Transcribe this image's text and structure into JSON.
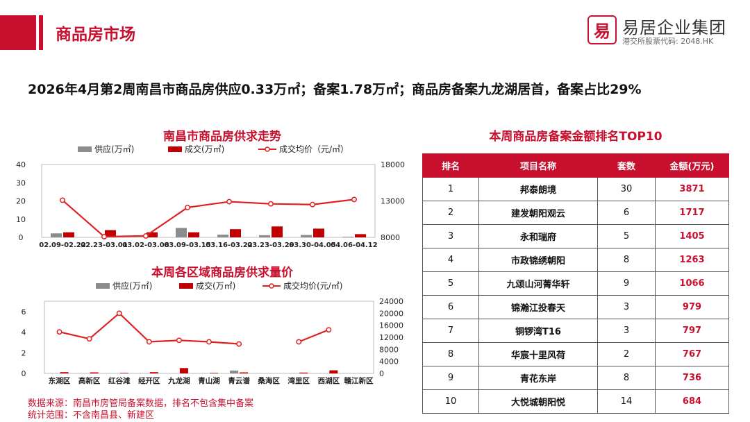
{
  "header": {
    "section_title": "商品房市场",
    "brand_seal": "易",
    "brand_name": "易居企业集团",
    "brand_sub": "港交所股票代码: 2048.HK"
  },
  "headline": "2026年4月第2周南昌市商品房供应0.33万㎡；备案1.78万㎡；商品房备案九龙湖居首，备案占比29%",
  "colors": {
    "supply": "#8c8c8c",
    "deal": "#c00000",
    "price": "#e02020",
    "accent": "#c8102e"
  },
  "chart_data": [
    {
      "type": "bar",
      "title": "南昌市商品房供求走势",
      "categories": [
        "02.09-02.22",
        "02.23-03.01",
        "03.02-03.08",
        "03.09-03.15",
        "03.16-03.22",
        "03.23-03.29",
        "03.30-04.05",
        "04.06-04.12"
      ],
      "series": [
        {
          "name": "供应(万㎡)",
          "values": [
            2.2,
            0,
            0,
            5.2,
            1.5,
            1.2,
            1.3,
            0.33
          ]
        },
        {
          "name": "成交(万㎡)",
          "values": [
            2.8,
            4.0,
            2.8,
            2.8,
            4.5,
            6.0,
            4.8,
            1.78
          ]
        },
        {
          "name": "成交均价（元/㎡）",
          "axis": "right",
          "values": [
            13100,
            8100,
            8200,
            12100,
            12900,
            12600,
            12500,
            13200
          ]
        }
      ],
      "ylim": [
        0,
        40
      ],
      "y_ticks": [
        "40",
        "30",
        "20",
        "10",
        "0"
      ],
      "y2lim": [
        8000,
        18000
      ],
      "y2_ticks": [
        "18000",
        "13000",
        "8000"
      ]
    },
    {
      "type": "bar",
      "title": "本周各区域商品房供求量价",
      "categories": [
        "东湖区",
        "高新区",
        "红谷滩",
        "经开区",
        "九龙湖",
        "青山湖",
        "青云谱",
        "桑海区",
        "湾里区",
        "西湖区",
        "赣江新区"
      ],
      "series": [
        {
          "name": "供应(万㎡)",
          "values": [
            0,
            0,
            0,
            0,
            0,
            0,
            0.28,
            0,
            0,
            0,
            0
          ]
        },
        {
          "name": "成交(万㎡)",
          "values": [
            0.12,
            0.1,
            0.05,
            0.12,
            0.52,
            0.05,
            0.1,
            0,
            0.08,
            0.3,
            0
          ]
        },
        {
          "name": "成交均价(元/㎡)",
          "axis": "right",
          "values": [
            13800,
            11500,
            20000,
            10500,
            11000,
            10500,
            9800,
            null,
            10500,
            14500,
            null
          ]
        }
      ],
      "ylim": [
        0,
        7
      ],
      "y_ticks": [
        "6",
        "4",
        "2",
        "0"
      ],
      "y2lim": [
        0,
        24000
      ],
      "y2_ticks": [
        "24000",
        "20000",
        "16000",
        "12000",
        "8000",
        "4000",
        "0"
      ]
    }
  ],
  "ranking": {
    "title": "本周商品房备案金额排名TOP10",
    "columns": [
      "排名",
      "项目名称",
      "套数",
      "金额(万元)"
    ],
    "rows": [
      [
        "1",
        "邦泰朗境",
        "30",
        "3871"
      ],
      [
        "2",
        "建发朝阳观云",
        "6",
        "1717"
      ],
      [
        "3",
        "永和瑞府",
        "5",
        "1405"
      ],
      [
        "4",
        "市政锦绣朝阳",
        "8",
        "1263"
      ],
      [
        "5",
        "九颂山河菁华轩",
        "9",
        "1066"
      ],
      [
        "6",
        "锦瀚江投春天",
        "3",
        "979"
      ],
      [
        "7",
        "铜锣湾T16",
        "3",
        "797"
      ],
      [
        "8",
        "华宸十里风荷",
        "2",
        "767"
      ],
      [
        "9",
        "青花东岸",
        "8",
        "736"
      ],
      [
        "10",
        "大悦城朝阳悦",
        "14",
        "684"
      ]
    ]
  },
  "footnotes": {
    "source": "数据来源：南昌市房管局备案数据，排名不包含集中备案",
    "scope": "统计范围：不含南昌县、新建区"
  }
}
